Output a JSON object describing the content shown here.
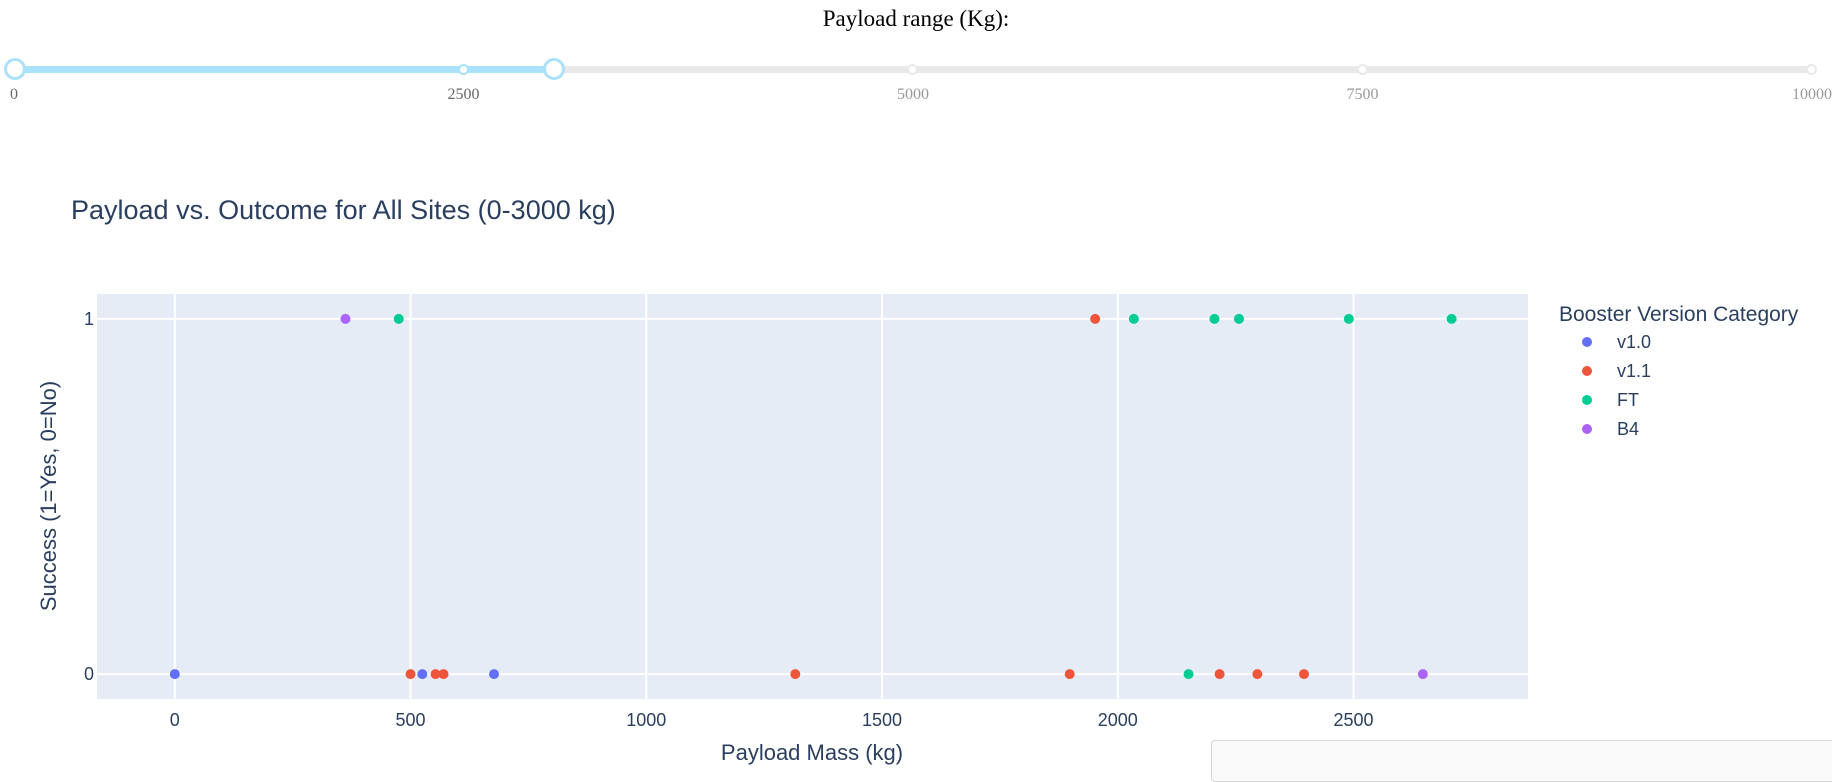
{
  "slider": {
    "label": "Payload range (Kg):",
    "min": 0,
    "max": 10000,
    "value": [
      0,
      3000
    ],
    "marks": [
      "0",
      "2500",
      "5000",
      "7500",
      "10000"
    ],
    "accent_color": "#abe2fb",
    "rail_color": "#e9e9e9"
  },
  "chart_data": {
    "type": "scatter",
    "title": "Payload vs. Outcome for All Sites (0-3000 kg)",
    "xlabel": "Payload Mass (kg)",
    "ylabel": "Success (1=Yes, 0=No)",
    "xlim": [
      -165,
      2870
    ],
    "ylim": [
      -0.07,
      1.07
    ],
    "x_ticks": [
      "0",
      "500",
      "1000",
      "1500",
      "2000",
      "2500"
    ],
    "y_ticks": [
      "0",
      "1"
    ],
    "grid": true,
    "background": "#e5ecf6",
    "legend": {
      "title": "Booster Version Category",
      "position": "right",
      "items": [
        "v1.0",
        "v1.1",
        "FT",
        "B4"
      ]
    },
    "series": [
      {
        "name": "v1.0",
        "color": "#636efa",
        "points": [
          [
            0,
            0
          ],
          [
            525,
            0
          ],
          [
            677,
            0
          ]
        ]
      },
      {
        "name": "v1.1",
        "color": "#ef553b",
        "points": [
          [
            500,
            0
          ],
          [
            553,
            0
          ],
          [
            570,
            0
          ],
          [
            1316,
            0
          ],
          [
            1898,
            0
          ],
          [
            1952,
            1
          ],
          [
            2216,
            0
          ],
          [
            2296,
            0
          ],
          [
            2395,
            0
          ]
        ]
      },
      {
        "name": "FT",
        "color": "#00cc96",
        "points": [
          [
            475,
            1
          ],
          [
            2034,
            1
          ],
          [
            2150,
            0
          ],
          [
            2205,
            1
          ],
          [
            2257,
            1
          ],
          [
            2490,
            1
          ],
          [
            2708,
            1
          ]
        ]
      },
      {
        "name": "B4",
        "color": "#ab63fa",
        "points": [
          [
            362,
            1
          ],
          [
            2647,
            0
          ]
        ]
      }
    ]
  }
}
